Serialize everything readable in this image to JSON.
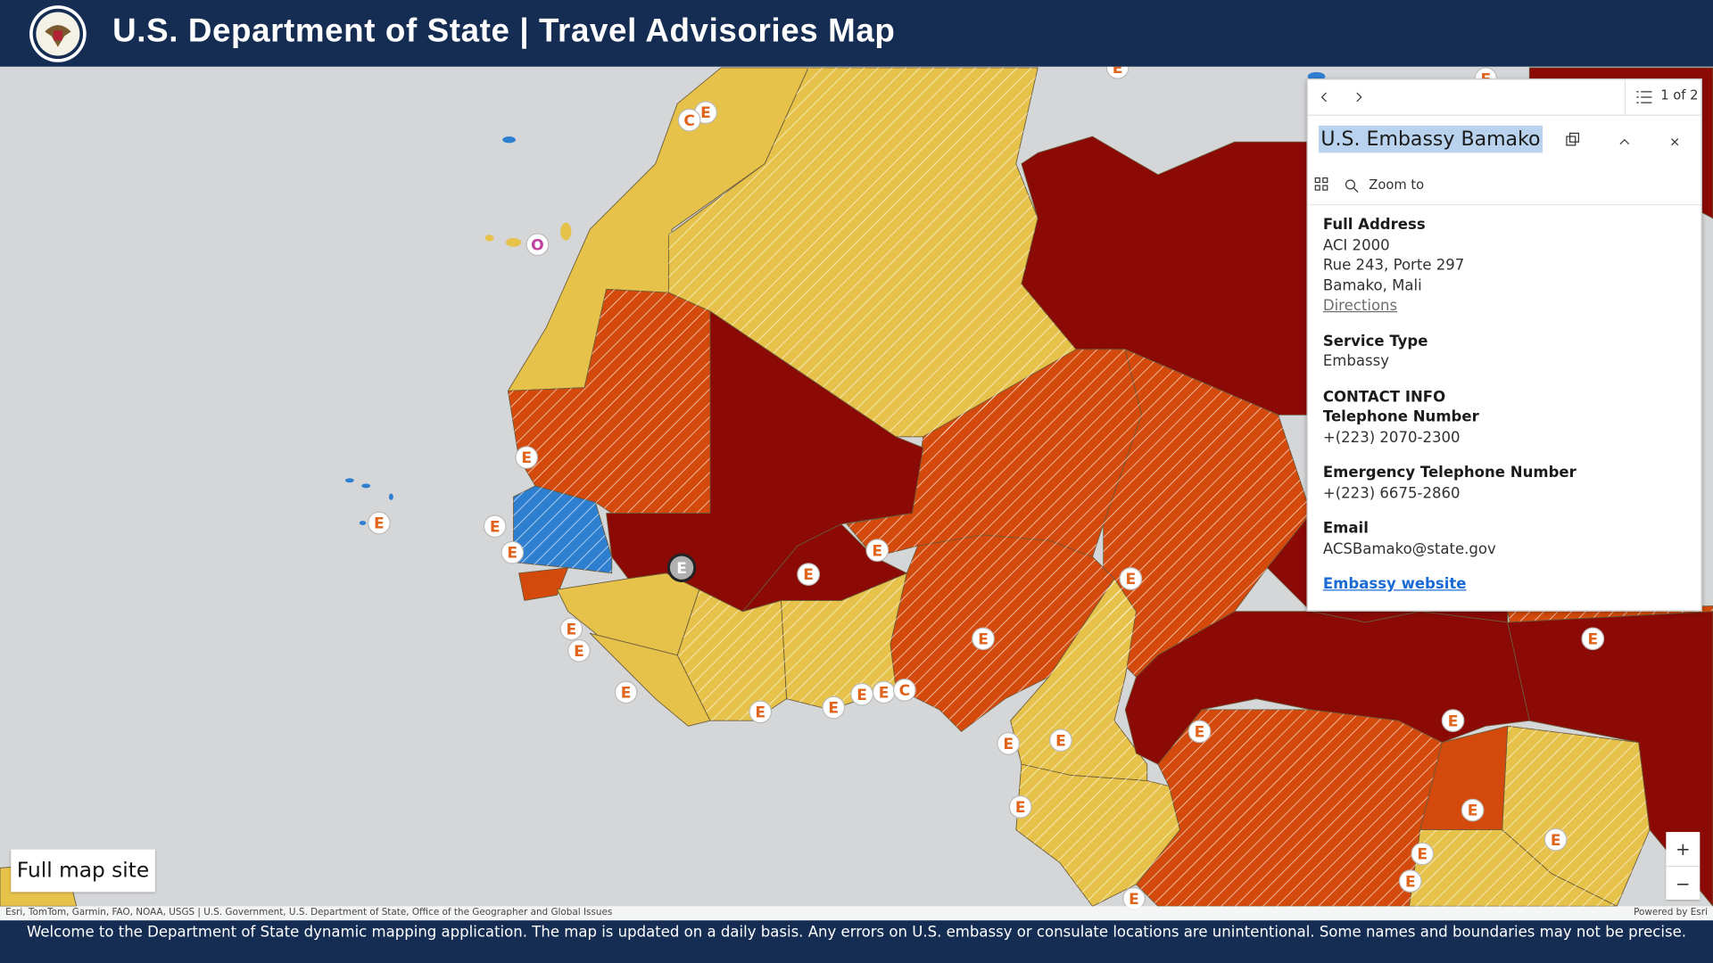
{
  "header": {
    "title": "U.S. Department of State | Travel Advisories Map"
  },
  "markers": [
    "E",
    "C",
    "O",
    "E",
    "E",
    "E",
    "E",
    "E",
    "E",
    "E",
    "E",
    "E",
    "E",
    "E",
    "E",
    "E",
    "E",
    "E",
    "E",
    "C",
    "E",
    "E",
    "E",
    "E",
    "E",
    "E",
    "E",
    "E",
    "E",
    "E",
    "E",
    "E",
    "E"
  ],
  "popup": {
    "pager": "1 of 2",
    "title": "U.S. Embassy Bamako",
    "action": "Zoom to",
    "fields": [
      {
        "label": "Full Address",
        "lines": [
          "ACI 2000",
          "Rue 243, Porte 297",
          "Bamako, Mali"
        ],
        "link": "Directions"
      },
      {
        "label": "Service Type",
        "lines": [
          "Embassy"
        ]
      },
      {
        "label": "CONTACT INFO"
      },
      {
        "label": "Telephone Number",
        "lines": [
          "+(223) 2070-2300"
        ]
      },
      {
        "label": "Emergency Telephone Number",
        "lines": [
          "+(223) 6675-2860"
        ]
      },
      {
        "label": "Email",
        "lines": [
          "ACSBamako@state.gov"
        ]
      }
    ],
    "website": "Embassy website"
  },
  "full_map_site": "Full map site",
  "zoom_controls": [
    "+",
    "−"
  ],
  "attribution": "Esri, TomTom, Garmin, FAO, NOAA, USGS | U.S. Government, U.S. Department of State, Office of the Geographer and Global Issues",
  "powered_by": "Powered by Esri",
  "footer": "Welcome to the Department of State dynamic mapping application. The map is updated on a daily basis.  Any errors on U.S. embassy or consulate locations are unintentional. Some names and boundaries may not be precise."
}
